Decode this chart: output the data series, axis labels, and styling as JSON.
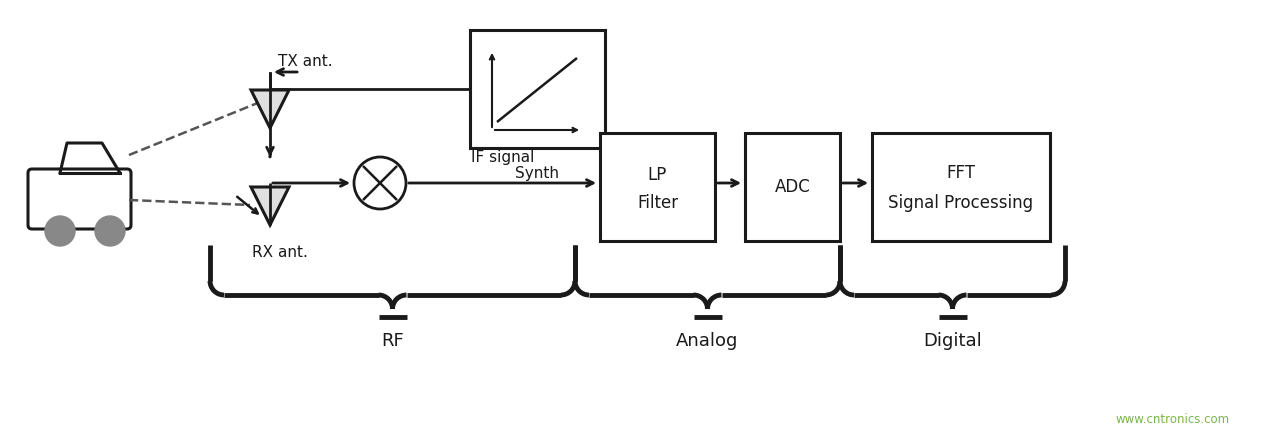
{
  "bg_color": "#ffffff",
  "line_color": "#1a1a1a",
  "text_color": "#1a1a1a",
  "watermark_color": "#7ab648",
  "watermark_text": "www.cntronics.com",
  "labels": {
    "tx_ant": "TX ant.",
    "rx_ant": "RX ant.",
    "synth": "Synth",
    "if_signal": "IF signal",
    "lp_filter_line1": "LP",
    "lp_filter_line2": "Filter",
    "adc": "ADC",
    "fft_line1": "FFT",
    "fft_line2": "Signal Processing",
    "rf": "RF",
    "analog": "Analog",
    "digital": "Digital"
  }
}
